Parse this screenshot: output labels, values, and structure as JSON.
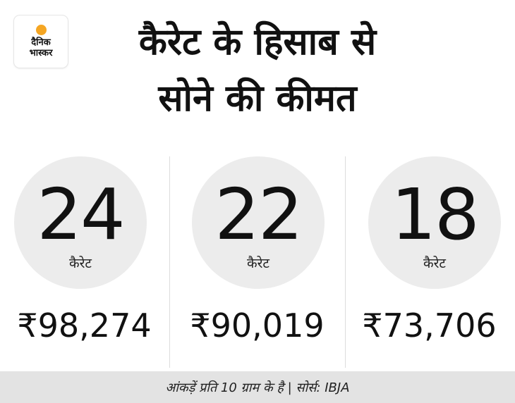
{
  "brand": {
    "logo_line1": "दैनिक",
    "logo_line2": "भास्कर",
    "sun_color": "#f5a623"
  },
  "header": {
    "title_line1": "कैरेट के हिसाब से",
    "title_line2": "सोने की कीमत"
  },
  "rates": [
    {
      "karat": "24",
      "unit": "कैरेट",
      "price": "₹98,274"
    },
    {
      "karat": "22",
      "unit": "कैरेट",
      "price": "₹90,019"
    },
    {
      "karat": "18",
      "unit": "कैरेट",
      "price": "₹73,706"
    }
  ],
  "footer": {
    "note": "आंकड़ें प्रति 10 ग्राम के है | सोर्स: IBJA"
  },
  "colors": {
    "circle": "#ececec",
    "footer_bg": "#e3e3e3",
    "text": "#111111"
  }
}
